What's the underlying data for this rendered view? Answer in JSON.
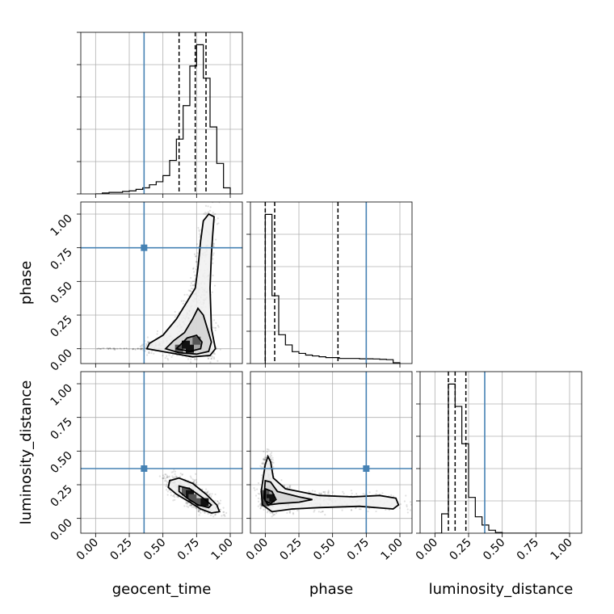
{
  "chart_data": {
    "type": "corner",
    "parameters": [
      "geocent_time",
      "phase",
      "luminosity_distance"
    ],
    "tick_labels": [
      "0.00",
      "0.25",
      "0.50",
      "0.75",
      "1.00"
    ],
    "range": [
      0,
      1
    ],
    "truths": {
      "geocent_time": 0.36,
      "phase": 0.75,
      "luminosity_distance": 0.37
    },
    "quantiles": {
      "geocent_time": [
        0.62,
        0.74,
        0.82
      ],
      "phase": [
        0.0,
        0.07,
        0.54
      ],
      "luminosity_distance": [
        0.1,
        0.15,
        0.23
      ]
    },
    "histograms": {
      "geocent_time": {
        "edges": [
          0.0,
          0.05,
          0.1,
          0.15,
          0.2,
          0.25,
          0.3,
          0.35,
          0.4,
          0.45,
          0.5,
          0.55,
          0.6,
          0.65,
          0.7,
          0.75,
          0.8,
          0.85,
          0.9,
          0.95,
          1.0
        ],
        "counts": [
          0,
          0.3,
          0.5,
          0.5,
          0.8,
          1,
          1.5,
          2,
          3,
          4,
          6,
          11,
          18,
          29,
          42,
          49,
          38,
          22,
          10,
          2
        ]
      },
      "phase": {
        "edges": [
          0.0,
          0.05,
          0.1,
          0.15,
          0.2,
          0.25,
          0.3,
          0.35,
          0.4,
          0.45,
          0.5,
          0.55,
          0.6,
          0.65,
          0.7,
          0.75,
          0.8,
          0.85,
          0.9,
          0.95,
          1.0
        ],
        "counts": [
          88,
          40,
          17,
          11,
          7,
          6,
          5,
          4.5,
          4,
          3.5,
          3.5,
          3,
          3,
          3,
          2.8,
          2.8,
          2.7,
          2.5,
          2.3,
          0.5
        ]
      },
      "luminosity_distance": {
        "edges": [
          0.0,
          0.05,
          0.1,
          0.15,
          0.2,
          0.25,
          0.3,
          0.35,
          0.4,
          0.45,
          0.5,
          0.55,
          0.6,
          0.65,
          0.7,
          0.75,
          0.8,
          0.85,
          0.9,
          0.95,
          1.0
        ],
        "counts": [
          0,
          13,
          100,
          85,
          60,
          24,
          11,
          5.5,
          2,
          0.5,
          0,
          0,
          0,
          0,
          0,
          0,
          0,
          0,
          0,
          0
        ]
      }
    },
    "scatter_2d": [
      {
        "x": "geocent_time",
        "y": "phase",
        "contours": [
          [
            [
              0.38,
              0.0
            ],
            [
              0.55,
              -0.03
            ],
            [
              0.72,
              -0.06
            ],
            [
              0.85,
              -0.05
            ],
            [
              0.89,
              0.0
            ],
            [
              0.86,
              0.15
            ],
            [
              0.85,
              0.45
            ],
            [
              0.86,
              0.7
            ],
            [
              0.87,
              0.85
            ],
            [
              0.88,
              0.98
            ],
            [
              0.84,
              1.0
            ],
            [
              0.8,
              0.95
            ],
            [
              0.78,
              0.8
            ],
            [
              0.76,
              0.6
            ],
            [
              0.74,
              0.45
            ],
            [
              0.68,
              0.35
            ],
            [
              0.6,
              0.22
            ],
            [
              0.5,
              0.1
            ],
            [
              0.4,
              0.04
            ],
            [
              0.38,
              0.0
            ]
          ],
          [
            [
              0.52,
              0.0
            ],
            [
              0.62,
              -0.03
            ],
            [
              0.75,
              -0.04
            ],
            [
              0.84,
              -0.02
            ],
            [
              0.86,
              0.05
            ],
            [
              0.83,
              0.15
            ],
            [
              0.8,
              0.25
            ],
            [
              0.76,
              0.3
            ],
            [
              0.72,
              0.22
            ],
            [
              0.66,
              0.12
            ],
            [
              0.58,
              0.06
            ],
            [
              0.52,
              0.0
            ]
          ],
          [
            [
              0.6,
              0.0
            ],
            [
              0.7,
              -0.02
            ],
            [
              0.78,
              0.0
            ],
            [
              0.79,
              0.05
            ],
            [
              0.75,
              0.1
            ],
            [
              0.68,
              0.08
            ],
            [
              0.6,
              0.0
            ]
          ]
        ],
        "peaks": [
          [
            0.62,
            0.0
          ],
          [
            0.7,
            0.0
          ],
          [
            0.75,
            0.06
          ],
          [
            0.67,
            0.03
          ]
        ]
      },
      {
        "x": "geocent_time",
        "y": "luminosity_distance",
        "contours": [
          [
            [
              0.55,
              0.28
            ],
            [
              0.62,
              0.3
            ],
            [
              0.72,
              0.26
            ],
            [
              0.82,
              0.18
            ],
            [
              0.9,
              0.1
            ],
            [
              0.92,
              0.05
            ],
            [
              0.86,
              0.04
            ],
            [
              0.78,
              0.07
            ],
            [
              0.7,
              0.12
            ],
            [
              0.6,
              0.18
            ],
            [
              0.54,
              0.23
            ],
            [
              0.55,
              0.28
            ]
          ],
          [
            [
              0.62,
              0.24
            ],
            [
              0.7,
              0.22
            ],
            [
              0.8,
              0.15
            ],
            [
              0.86,
              0.1
            ],
            [
              0.84,
              0.08
            ],
            [
              0.76,
              0.1
            ],
            [
              0.68,
              0.15
            ],
            [
              0.62,
              0.2
            ],
            [
              0.62,
              0.24
            ]
          ]
        ],
        "peaks": [
          [
            0.67,
            0.2
          ],
          [
            0.7,
            0.18
          ],
          [
            0.77,
            0.12
          ],
          [
            0.81,
            0.12
          ],
          [
            0.72,
            0.15
          ]
        ]
      },
      {
        "x": "phase",
        "y": "luminosity_distance",
        "contours": [
          [
            [
              0.0,
              0.4
            ],
            [
              0.02,
              0.46
            ],
            [
              0.04,
              0.42
            ],
            [
              0.06,
              0.3
            ],
            [
              0.15,
              0.22
            ],
            [
              0.4,
              0.17
            ],
            [
              0.65,
              0.16
            ],
            [
              0.85,
              0.17
            ],
            [
              0.97,
              0.15
            ],
            [
              0.99,
              0.1
            ],
            [
              0.95,
              0.07
            ],
            [
              0.7,
              0.09
            ],
            [
              0.4,
              0.08
            ],
            [
              0.2,
              0.07
            ],
            [
              0.05,
              0.05
            ],
            [
              -0.02,
              0.1
            ],
            [
              -0.03,
              0.2
            ],
            [
              0.0,
              0.4
            ]
          ],
          [
            [
              0.0,
              0.28
            ],
            [
              0.04,
              0.27
            ],
            [
              0.09,
              0.2
            ],
            [
              0.25,
              0.16
            ],
            [
              0.35,
              0.14
            ],
            [
              0.25,
              0.12
            ],
            [
              0.1,
              0.11
            ],
            [
              0.02,
              0.1
            ],
            [
              -0.01,
              0.15
            ],
            [
              0.0,
              0.28
            ]
          ],
          [
            [
              0.0,
              0.22
            ],
            [
              0.05,
              0.2
            ],
            [
              0.08,
              0.14
            ],
            [
              0.04,
              0.11
            ],
            [
              0.0,
              0.13
            ],
            [
              0.0,
              0.22
            ]
          ]
        ],
        "peaks": [
          [
            0.0,
            0.18
          ],
          [
            0.04,
            0.15
          ],
          [
            0.0,
            0.12
          ]
        ]
      }
    ]
  }
}
